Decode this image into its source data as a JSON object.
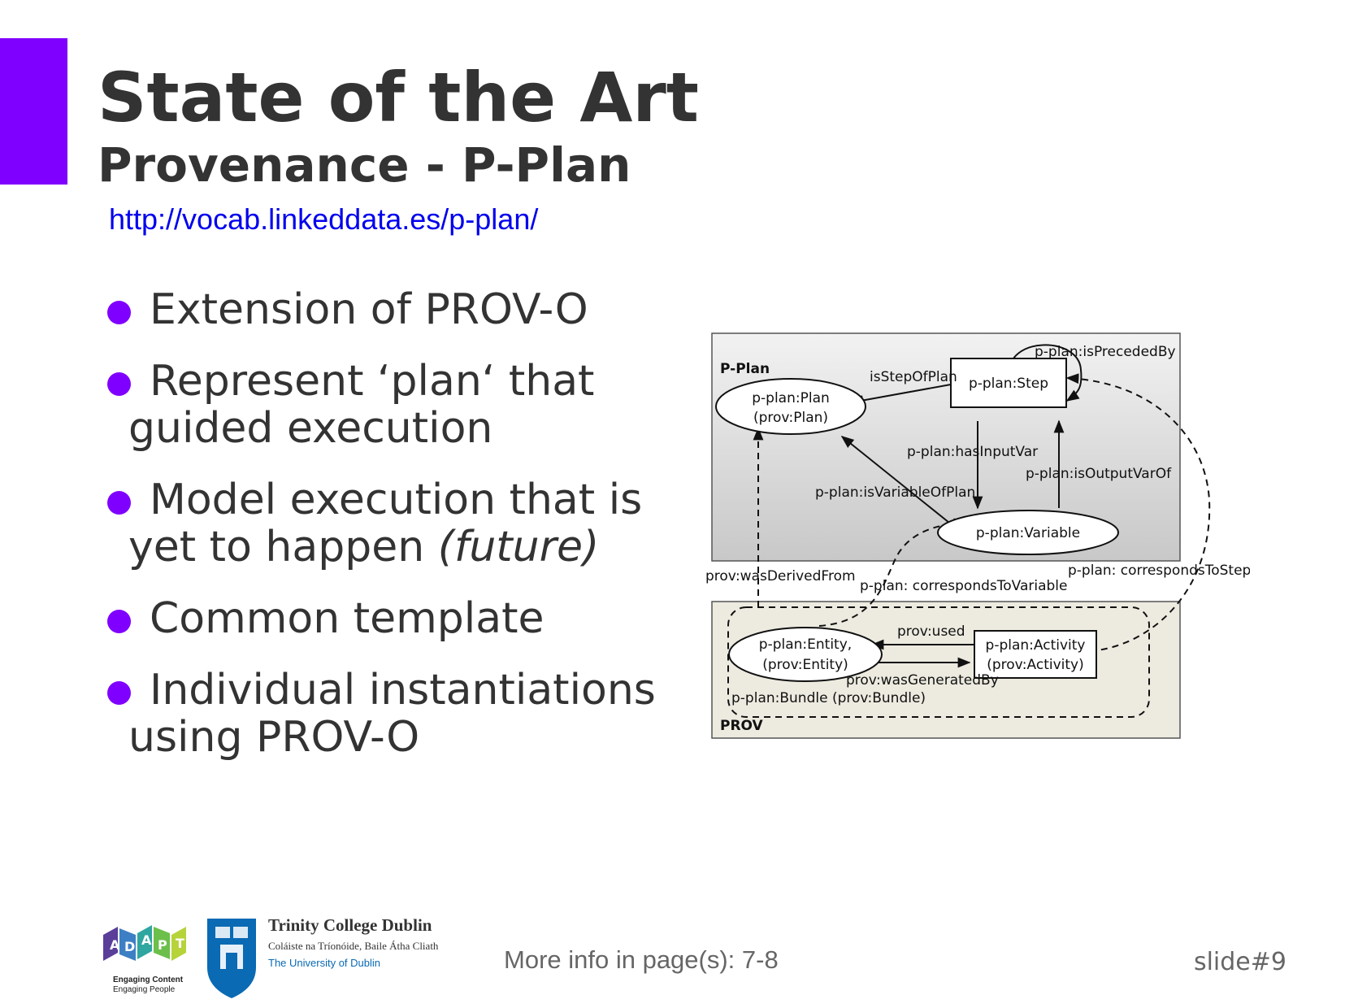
{
  "slide": {
    "title": "State of the Art",
    "subtitle": "Provenance - P-Plan",
    "url": "http://vocab.linkeddata.es/p-plan/",
    "bullets": [
      {
        "text": "Extension of PROV-O"
      },
      {
        "text": "Represent ‘plan‘ that",
        "cont": "guided execution"
      },
      {
        "text": "Model execution that is",
        "cont": "yet to happen ",
        "italic": "(future)"
      },
      {
        "text": "Common template"
      },
      {
        "text": "Individual instantiations",
        "cont": "using PROV-O"
      }
    ],
    "footer_note": "More info in page(s): 7-8",
    "slide_number": "slide#9"
  },
  "diagram": {
    "pplan_label": "P-Plan",
    "prov_label": "PROV",
    "nodes": {
      "plan_line1": "p-plan:Plan",
      "plan_line2": "(prov:Plan)",
      "step": "p-plan:Step",
      "variable": "p-plan:Variable",
      "entity_line1": "p-plan:Entity,",
      "entity_line2": "(prov:Entity)",
      "activity_line1": "p-plan:Activity",
      "activity_line2": "(prov:Activity)"
    },
    "edges": {
      "is_preceded_by": "p-plan:isPrecededBy",
      "is_step_of_plan": "isStepOfPlan",
      "has_input_var": "p-plan:hasInputVar",
      "is_output_var_of": "p-plan:isOutputVarOf",
      "is_variable_of_plan": "p-plan:isVariableOfPlan",
      "was_derived_from": "prov:wasDerivedFrom",
      "corresponds_to_variable": "p-plan: correspondsToVariable",
      "corresponds_to_step": "p-plan: correspondsToStep",
      "used": "prov:used",
      "was_generated_by": "prov:wasGeneratedBy",
      "bundle": "p-plan:Bundle (prov:Bundle)"
    }
  },
  "logos": {
    "adapt_tagline_1": "Engaging Content",
    "adapt_tagline_2": "Engaging People",
    "tcd_name": "Trinity College Dublin",
    "tcd_irish": "Coláiste na Tríonóide, Baile Átha Cliath",
    "tcd_university": "The University of Dublin"
  },
  "colors": {
    "accent": "#8000ff",
    "text": "#333333",
    "link": "#0000ee"
  }
}
